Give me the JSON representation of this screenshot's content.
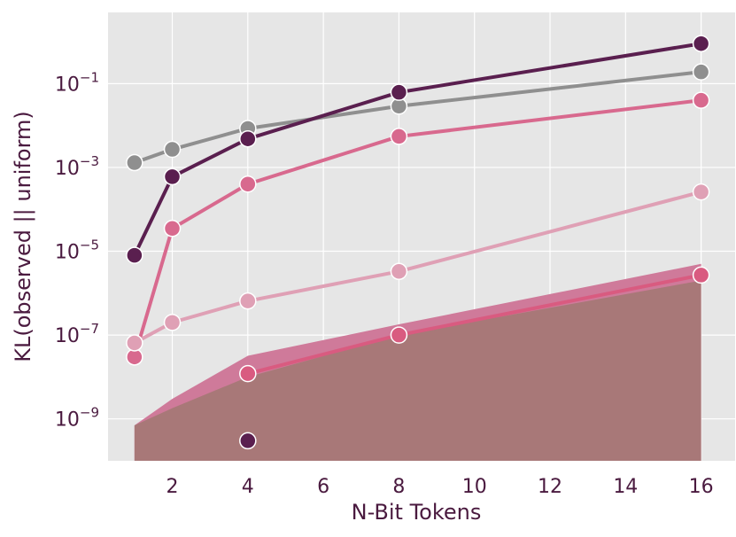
{
  "chart_data": {
    "type": "line",
    "xlabel": "N-Bit Tokens",
    "ylabel": "KL(observed || uniform)",
    "yscale": "log",
    "grid": true,
    "xlim": [
      0.3,
      16.9
    ],
    "ylim": [
      1e-10,
      5
    ],
    "x_ticks": [
      2,
      4,
      6,
      8,
      10,
      12,
      14,
      16
    ],
    "x_tick_labels": [
      "2",
      "4",
      "6",
      "8",
      "10",
      "12",
      "14",
      "16"
    ],
    "y_ticks": [
      1e-09,
      1e-07,
      1e-05,
      0.001,
      0.1
    ],
    "y_tick_labels": [
      {
        "base": "10",
        "exp": "−9"
      },
      {
        "base": "10",
        "exp": "−7"
      },
      {
        "base": "10",
        "exp": "−5"
      },
      {
        "base": "10",
        "exp": "−3"
      },
      {
        "base": "10",
        "exp": "−1"
      }
    ],
    "background_color": "#e6e6e6",
    "grid_color": "#ffffff",
    "text_color": "#4a1a3f",
    "series": [
      {
        "color": "#8f8f8f",
        "x": [
          1,
          2,
          4,
          8,
          16
        ],
        "y": [
          0.0013,
          0.0027,
          0.0085,
          0.029,
          0.19
        ]
      },
      {
        "color": "#5a1f4f",
        "x": [
          1,
          2,
          4,
          8,
          16
        ],
        "y": [
          8e-06,
          0.0006,
          0.0048,
          0.062,
          0.9
        ]
      },
      {
        "color": "#d8698e",
        "x": [
          1,
          2,
          4,
          8,
          16
        ],
        "y": [
          3e-08,
          3.5e-05,
          0.0004,
          0.0055,
          0.04
        ]
      },
      {
        "color": "#dfa0b5",
        "x": [
          1,
          2,
          4,
          8,
          16
        ],
        "y": [
          6.5e-08,
          2e-07,
          6.5e-07,
          3.3e-06,
          0.00026
        ]
      },
      {
        "color": "#d95b80",
        "x": [
          4,
          8,
          16
        ],
        "y": [
          1.2e-08,
          1e-07,
          2.7e-06
        ]
      },
      {
        "color": "#5a1f4f",
        "x": [
          4
        ],
        "y": [
          3e-10
        ]
      }
    ],
    "bands": [
      {
        "color": "#cf7a9a",
        "x": [
          1,
          2,
          4,
          8,
          16
        ],
        "upper": [
          7e-10,
          3e-09,
          3.2e-08,
          1.8e-07,
          5e-06
        ],
        "lower": [
          1e-10,
          1e-10,
          1e-10,
          1e-10,
          1e-10
        ]
      },
      {
        "color": "#9c9c9c",
        "x": [
          4,
          8
        ],
        "upper": [
          7e-10,
          1.8e-08
        ],
        "lower": [
          1e-10,
          1e-10
        ]
      },
      {
        "color": "#a87878",
        "x": [
          1,
          2,
          4,
          8,
          16
        ],
        "upper": [
          7e-10,
          1.8e-09,
          1e-08,
          1e-07,
          2e-06
        ],
        "lower": [
          1e-10,
          1e-10,
          1e-10,
          1e-10,
          1e-10
        ]
      }
    ]
  }
}
